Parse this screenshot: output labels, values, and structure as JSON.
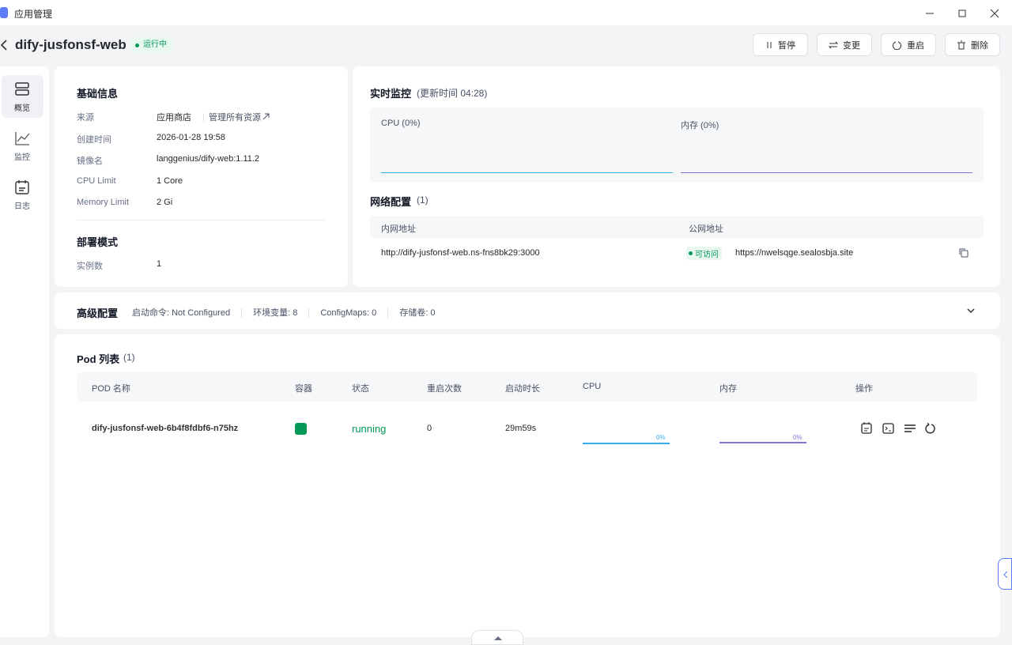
{
  "window": {
    "title": "应用管理"
  },
  "header": {
    "app_name": "dify-jusfonsf-web",
    "status": "运行中",
    "actions": [
      "暂停",
      "变更",
      "重启",
      "删除"
    ]
  },
  "sidebar": [
    "概览",
    "监控",
    "日志"
  ],
  "basic_info": {
    "title": "基础信息",
    "rows": [
      [
        "来源",
        "应用商店"
      ],
      [
        "创建时间",
        "2026-01-28 19:58"
      ],
      [
        "镜像名",
        "langgenius/dify-web:1.11.2"
      ],
      [
        "CPU Limit",
        "1 Core"
      ],
      [
        "Memory Limit",
        "2 Gi"
      ]
    ],
    "manage_link": "管理所有资源"
  },
  "deploy": {
    "title": "部署模式",
    "rows": [
      [
        "实例数",
        "1"
      ]
    ]
  },
  "monitor": {
    "title": "实时监控",
    "update": "(更新时间  04:28)",
    "cpu": "CPU  (0%)",
    "memory": "内存  (0%)"
  },
  "network": {
    "title": "网络配置",
    "count": "(1)",
    "headers": [
      "内网地址",
      "公网地址"
    ],
    "row": {
      "internal": "http://dify-jusfonsf-web.ns-fns8bk29:3000",
      "badge": "可访问",
      "public": "https://nwelsqge.sealosbja.site"
    }
  },
  "advanced": {
    "title": "高级配置",
    "items": [
      "启动命令: Not Configured",
      "环境变量: 8",
      "ConfigMaps: 0",
      "存储卷: 0"
    ]
  },
  "pods": {
    "title": "Pod 列表",
    "count": "(1)",
    "headers": [
      "POD 名称",
      "容器",
      "状态",
      "重启次数",
      "启动时长",
      "CPU",
      "内存",
      "操作"
    ],
    "rows": [
      {
        "name": "dify-jusfonsf-web-6b4f8fdbf6-n75hz",
        "status": "running",
        "restarts": "0",
        "uptime": "29m59s",
        "cpu": "0%",
        "memory": "0%"
      }
    ]
  }
}
